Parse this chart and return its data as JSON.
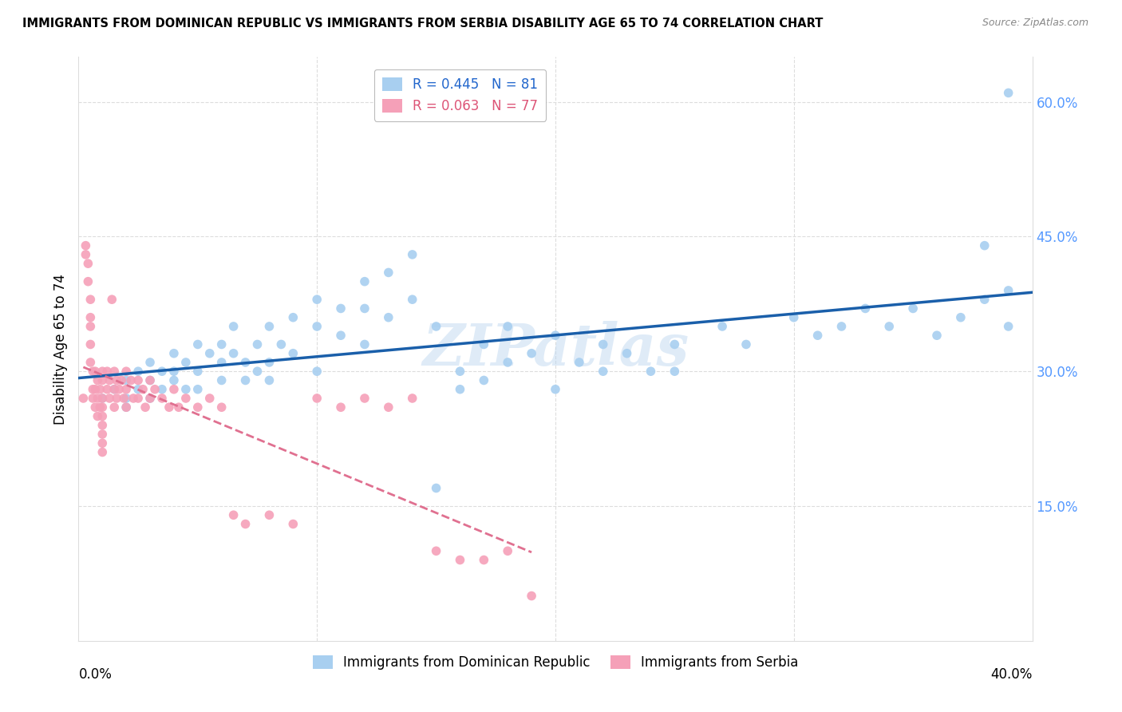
{
  "title": "IMMIGRANTS FROM DOMINICAN REPUBLIC VS IMMIGRANTS FROM SERBIA DISABILITY AGE 65 TO 74 CORRELATION CHART",
  "source": "Source: ZipAtlas.com",
  "ylabel": "Disability Age 65 to 74",
  "ytick_values": [
    0.15,
    0.3,
    0.45,
    0.6
  ],
  "xlim": [
    0.0,
    0.4
  ],
  "ylim": [
    0.0,
    0.65
  ],
  "blue_N": 81,
  "pink_N": 77,
  "watermark": "ZIPatlas",
  "blue_color": "#a8cff0",
  "pink_color": "#f5a0b8",
  "blue_line_color": "#1a5faa",
  "pink_line_color": "#e07090",
  "background_color": "#ffffff",
  "grid_color": "#dddddd",
  "right_tick_color": "#5599ff",
  "blue_scatter_x": [
    0.01,
    0.015,
    0.02,
    0.02,
    0.02,
    0.025,
    0.025,
    0.03,
    0.03,
    0.03,
    0.035,
    0.035,
    0.04,
    0.04,
    0.04,
    0.045,
    0.045,
    0.05,
    0.05,
    0.05,
    0.055,
    0.06,
    0.06,
    0.06,
    0.065,
    0.065,
    0.07,
    0.07,
    0.075,
    0.075,
    0.08,
    0.08,
    0.08,
    0.085,
    0.09,
    0.09,
    0.1,
    0.1,
    0.1,
    0.11,
    0.11,
    0.12,
    0.12,
    0.12,
    0.13,
    0.13,
    0.14,
    0.14,
    0.15,
    0.15,
    0.16,
    0.16,
    0.17,
    0.17,
    0.18,
    0.18,
    0.19,
    0.2,
    0.2,
    0.21,
    0.22,
    0.22,
    0.23,
    0.24,
    0.25,
    0.25,
    0.27,
    0.28,
    0.3,
    0.31,
    0.32,
    0.33,
    0.34,
    0.35,
    0.36,
    0.37,
    0.38,
    0.38,
    0.39,
    0.39,
    0.39
  ],
  "blue_scatter_y": [
    0.27,
    0.28,
    0.26,
    0.29,
    0.27,
    0.3,
    0.28,
    0.29,
    0.31,
    0.27,
    0.3,
    0.28,
    0.3,
    0.32,
    0.29,
    0.31,
    0.28,
    0.3,
    0.33,
    0.28,
    0.32,
    0.31,
    0.29,
    0.33,
    0.35,
    0.32,
    0.31,
    0.29,
    0.33,
    0.3,
    0.35,
    0.31,
    0.29,
    0.33,
    0.36,
    0.32,
    0.38,
    0.35,
    0.3,
    0.37,
    0.34,
    0.4,
    0.37,
    0.33,
    0.41,
    0.36,
    0.43,
    0.38,
    0.35,
    0.17,
    0.3,
    0.28,
    0.33,
    0.29,
    0.35,
    0.31,
    0.32,
    0.34,
    0.28,
    0.31,
    0.33,
    0.3,
    0.32,
    0.3,
    0.33,
    0.3,
    0.35,
    0.33,
    0.36,
    0.34,
    0.35,
    0.37,
    0.35,
    0.37,
    0.34,
    0.36,
    0.44,
    0.38,
    0.39,
    0.35,
    0.61
  ],
  "pink_scatter_x": [
    0.002,
    0.003,
    0.003,
    0.004,
    0.004,
    0.005,
    0.005,
    0.005,
    0.005,
    0.005,
    0.006,
    0.006,
    0.006,
    0.007,
    0.007,
    0.007,
    0.008,
    0.008,
    0.008,
    0.009,
    0.009,
    0.01,
    0.01,
    0.01,
    0.01,
    0.01,
    0.01,
    0.01,
    0.01,
    0.01,
    0.012,
    0.012,
    0.013,
    0.013,
    0.014,
    0.015,
    0.015,
    0.015,
    0.016,
    0.016,
    0.017,
    0.018,
    0.019,
    0.02,
    0.02,
    0.02,
    0.022,
    0.023,
    0.025,
    0.025,
    0.027,
    0.028,
    0.03,
    0.03,
    0.032,
    0.035,
    0.038,
    0.04,
    0.042,
    0.045,
    0.05,
    0.055,
    0.06,
    0.065,
    0.07,
    0.08,
    0.09,
    0.1,
    0.11,
    0.12,
    0.13,
    0.14,
    0.15,
    0.16,
    0.17,
    0.18,
    0.19
  ],
  "pink_scatter_y": [
    0.27,
    0.44,
    0.43,
    0.42,
    0.4,
    0.38,
    0.36,
    0.35,
    0.33,
    0.31,
    0.3,
    0.28,
    0.27,
    0.3,
    0.28,
    0.26,
    0.29,
    0.27,
    0.25,
    0.28,
    0.26,
    0.3,
    0.29,
    0.27,
    0.26,
    0.25,
    0.24,
    0.23,
    0.22,
    0.21,
    0.3,
    0.28,
    0.29,
    0.27,
    0.38,
    0.3,
    0.28,
    0.26,
    0.29,
    0.27,
    0.28,
    0.29,
    0.27,
    0.3,
    0.28,
    0.26,
    0.29,
    0.27,
    0.29,
    0.27,
    0.28,
    0.26,
    0.29,
    0.27,
    0.28,
    0.27,
    0.26,
    0.28,
    0.26,
    0.27,
    0.26,
    0.27,
    0.26,
    0.14,
    0.13,
    0.14,
    0.13,
    0.27,
    0.26,
    0.27,
    0.26,
    0.27,
    0.1,
    0.09,
    0.09,
    0.1,
    0.05
  ]
}
